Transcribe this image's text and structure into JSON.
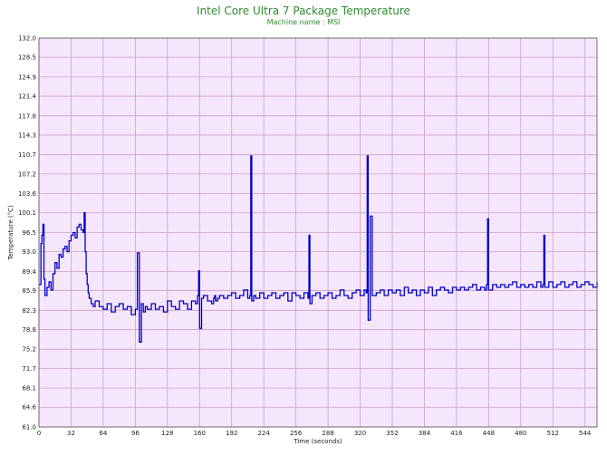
{
  "chart_data": {
    "type": "line",
    "title": "Intel Core Ultra 7 Package Temperature",
    "subtitle": "Machine name : MSI",
    "xlabel": "Time (seconds)",
    "ylabel": "Temperature (°C)",
    "xlim": [
      0,
      556
    ],
    "ylim": [
      61.0,
      132.0
    ],
    "x_ticks": [
      0,
      32,
      64,
      96,
      128,
      160,
      192,
      224,
      256,
      288,
      320,
      352,
      384,
      416,
      448,
      480,
      512,
      544
    ],
    "y_ticks": [
      "61.0",
      "64.6",
      "68.1",
      "71.7",
      "75.2",
      "78.8",
      "82.3",
      "85.9",
      "89.4",
      "93.0",
      "96.5",
      "100.1",
      "103.6",
      "107.2",
      "110.7",
      "114.3",
      "117.8",
      "121.4",
      "124.9",
      "128.5",
      "132.0"
    ],
    "grid": true,
    "background": "#f6e6fb",
    "grid_color": "#c9a0c9",
    "line_color": "#0000c8",
    "series": [
      {
        "x": [
          0,
          2,
          3,
          4,
          5,
          6,
          8,
          10,
          12,
          14,
          16,
          18,
          20,
          22,
          24,
          26,
          28,
          30,
          32,
          34,
          36,
          38,
          40,
          42,
          44,
          45,
          46,
          47,
          48,
          49,
          50,
          52,
          54,
          56,
          60,
          64,
          68,
          72,
          76,
          80,
          84,
          88,
          92,
          96,
          98,
          100,
          102,
          104,
          106,
          108,
          112,
          116,
          120,
          124,
          128,
          132,
          136,
          140,
          144,
          148,
          152,
          156,
          158,
          159,
          160,
          162,
          164,
          168,
          172,
          174,
          175,
          176,
          178,
          180,
          184,
          188,
          192,
          196,
          200,
          204,
          208,
          210,
          211,
          212,
          214,
          216,
          220,
          224,
          228,
          232,
          236,
          240,
          244,
          248,
          252,
          256,
          260,
          264,
          268,
          269,
          270,
          272,
          276,
          280,
          284,
          288,
          292,
          296,
          300,
          304,
          308,
          312,
          316,
          320,
          324,
          326,
          327,
          328,
          330,
          332,
          336,
          340,
          344,
          348,
          352,
          356,
          360,
          364,
          368,
          372,
          376,
          380,
          384,
          388,
          392,
          396,
          400,
          404,
          408,
          412,
          416,
          420,
          424,
          428,
          432,
          436,
          440,
          444,
          446,
          447,
          448,
          452,
          456,
          460,
          464,
          468,
          472,
          476,
          480,
          484,
          488,
          492,
          496,
          500,
          502,
          503,
          504,
          508,
          512,
          516,
          520,
          524,
          528,
          532,
          536,
          540,
          544,
          548,
          552,
          556
        ],
        "y": [
          87.0,
          94.5,
          96.0,
          98.0,
          88.0,
          85.0,
          86.5,
          87.5,
          86.0,
          89.0,
          91.0,
          90.0,
          92.5,
          92.0,
          93.5,
          94.0,
          93.0,
          95.0,
          96.0,
          96.5,
          95.5,
          97.5,
          98.0,
          97.0,
          96.5,
          100.1,
          93.0,
          89.0,
          87.0,
          85.5,
          84.5,
          83.5,
          83.0,
          84.0,
          83.0,
          82.5,
          83.5,
          82.0,
          83.0,
          83.5,
          82.5,
          83.0,
          81.5,
          82.5,
          92.8,
          76.5,
          83.5,
          82.0,
          83.0,
          82.5,
          83.5,
          82.5,
          83.0,
          82.0,
          84.0,
          83.0,
          82.5,
          84.0,
          83.5,
          82.5,
          84.0,
          83.5,
          85.0,
          89.5,
          79.0,
          84.5,
          85.0,
          84.0,
          83.5,
          84.5,
          85.0,
          84.0,
          84.5,
          85.0,
          84.5,
          85.0,
          85.5,
          84.5,
          85.0,
          86.0,
          84.5,
          85.0,
          110.5,
          84.0,
          85.0,
          84.5,
          85.5,
          84.5,
          85.0,
          85.5,
          84.5,
          85.0,
          85.5,
          84.0,
          85.5,
          85.0,
          84.5,
          85.5,
          84.5,
          96.0,
          83.5,
          85.0,
          85.5,
          84.5,
          85.0,
          85.5,
          84.5,
          85.0,
          86.0,
          85.0,
          84.5,
          85.5,
          86.0,
          85.0,
          86.0,
          85.5,
          110.5,
          80.5,
          99.5,
          85.0,
          85.5,
          86.0,
          85.0,
          86.0,
          85.5,
          86.0,
          85.0,
          86.5,
          85.5,
          86.0,
          85.0,
          86.0,
          85.5,
          86.5,
          85.0,
          86.0,
          86.5,
          86.0,
          85.5,
          86.5,
          86.0,
          86.5,
          86.0,
          86.5,
          87.0,
          86.0,
          86.5,
          86.0,
          87.0,
          99.0,
          86.0,
          87.0,
          86.5,
          87.0,
          86.5,
          87.0,
          87.5,
          86.5,
          87.0,
          86.5,
          87.0,
          86.5,
          87.5,
          86.5,
          87.0,
          96.0,
          86.5,
          87.5,
          86.5,
          87.0,
          87.5,
          86.5,
          87.0,
          87.5,
          86.5,
          87.0,
          87.5,
          87.0,
          86.5,
          87.5
        ]
      }
    ]
  }
}
